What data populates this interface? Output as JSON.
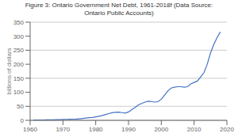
{
  "chart_data": {
    "type": "line",
    "title": "Figure 3: Ontario Government Net Debt, 1961-2018f (Data Source:\nOntario Public Accounts)",
    "ylabel": "billions of dollars",
    "color": "#4472c4",
    "xlim": [
      1960,
      2020
    ],
    "xticks": [
      1960,
      1970,
      1980,
      1990,
      2000,
      2010,
      2020
    ],
    "ylim": [
      0,
      350
    ],
    "yticks": [
      0,
      50,
      100,
      150,
      200,
      250,
      300,
      350
    ],
    "grid": "y",
    "x": [
      1961,
      1962,
      1963,
      1964,
      1965,
      1966,
      1967,
      1968,
      1969,
      1970,
      1971,
      1972,
      1973,
      1974,
      1975,
      1976,
      1977,
      1978,
      1979,
      1980,
      1981,
      1982,
      1983,
      1984,
      1985,
      1986,
      1987,
      1988,
      1989,
      1990,
      1991,
      1992,
      1993,
      1994,
      1995,
      1996,
      1997,
      1998,
      1999,
      2000,
      2001,
      2002,
      2003,
      2004,
      2005,
      2006,
      2007,
      2008,
      2009,
      2010,
      2011,
      2012,
      2013,
      2014,
      2015,
      2016,
      2017,
      2018
    ],
    "values": [
      1.0,
      1.2,
      1.3,
      1.4,
      1.5,
      1.7,
      2.0,
      2.3,
      2.6,
      3.0,
      3.5,
      4.0,
      4.3,
      4.5,
      5.5,
      6.5,
      8.0,
      9.5,
      10.5,
      12.5,
      14.5,
      17.5,
      21.0,
      24.0,
      27.0,
      28.5,
      29.0,
      27.5,
      26.0,
      30.0,
      38.0,
      46.0,
      55.0,
      60.0,
      65.0,
      68.0,
      67.0,
      65.0,
      67.0,
      75.0,
      90.0,
      105.0,
      115.0,
      118.0,
      120.0,
      120.0,
      118.0,
      120.0,
      130.0,
      135.0,
      140.0,
      155.0,
      170.0,
      200.0,
      240.0,
      270.0,
      295.0,
      315.0
    ]
  }
}
